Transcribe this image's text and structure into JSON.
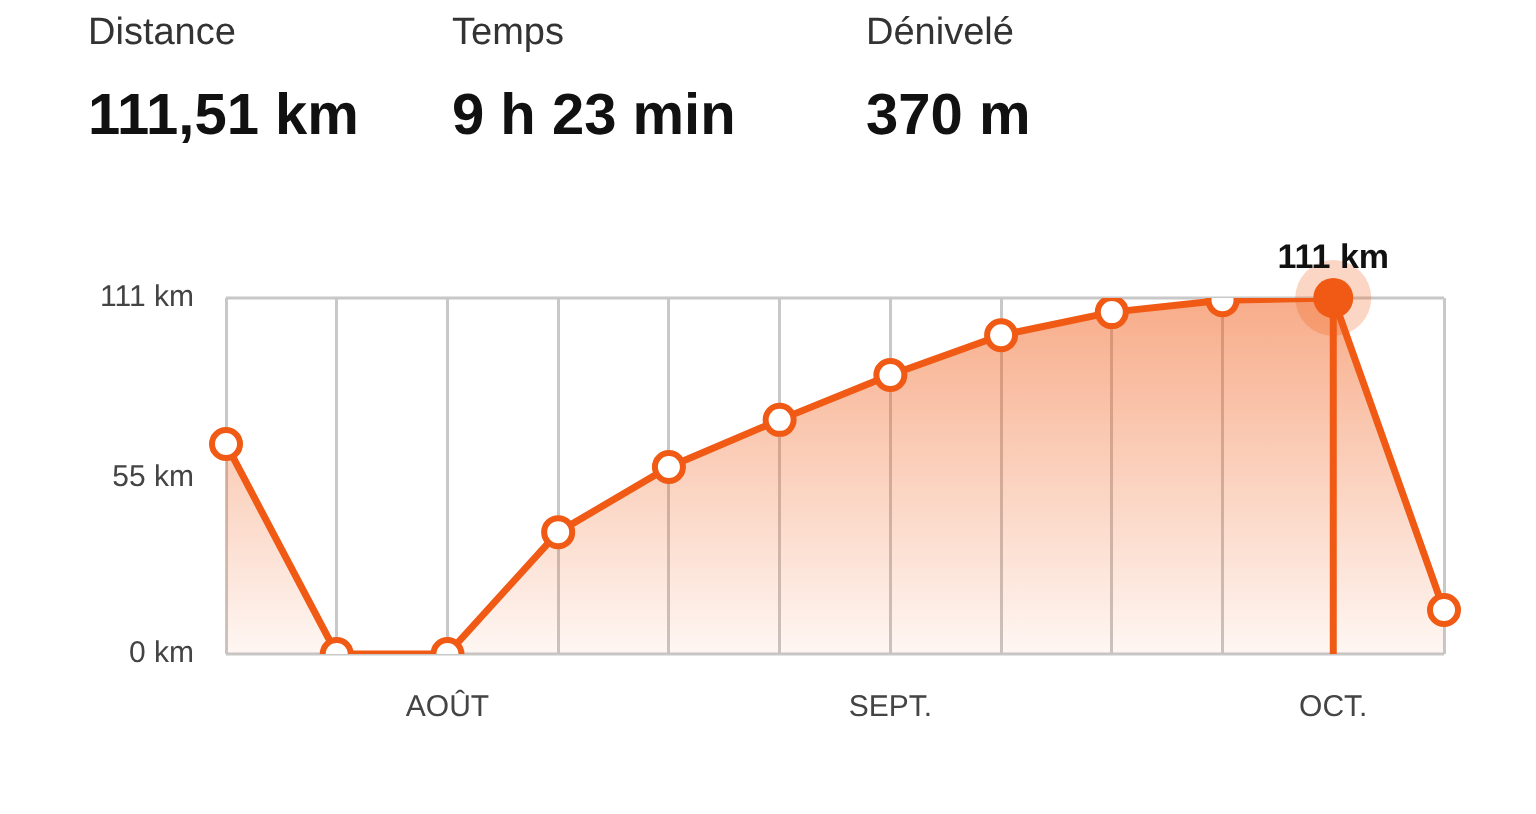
{
  "chart_data": {
    "type": "area",
    "annotations": [
      "Distance",
      "111,51 km",
      "Temps",
      "9 h 23 min",
      "Dénivelé",
      "370 m",
      {
        "text": "111 km",
        "x": "OCT.",
        "y": 111
      }
    ],
    "categories": [
      null,
      null,
      "AOÛT",
      null,
      null,
      null,
      "SEPT.",
      null,
      null,
      null,
      "OCT.",
      null
    ],
    "series": [
      {
        "color": "#f05a14",
        "values": [
          65.5,
          0,
          0,
          38,
          58.3,
          73,
          87,
          99.4,
          106.6,
          110.3,
          111,
          13.7
        ]
      }
    ],
    "ylim": [
      0,
      111
    ],
    "yticks": [
      {
        "value": 0,
        "label": "0 km"
      },
      {
        "value": 55,
        "label": "55 km"
      },
      {
        "value": 111,
        "label": "111 km"
      }
    ],
    "ref_lines": [
      {
        "axis": "x",
        "value": "OCT.",
        "color": "#f05a14"
      }
    ],
    "grid": "x",
    "legend": false,
    "marker": "circle",
    "line_style": "solid"
  }
}
